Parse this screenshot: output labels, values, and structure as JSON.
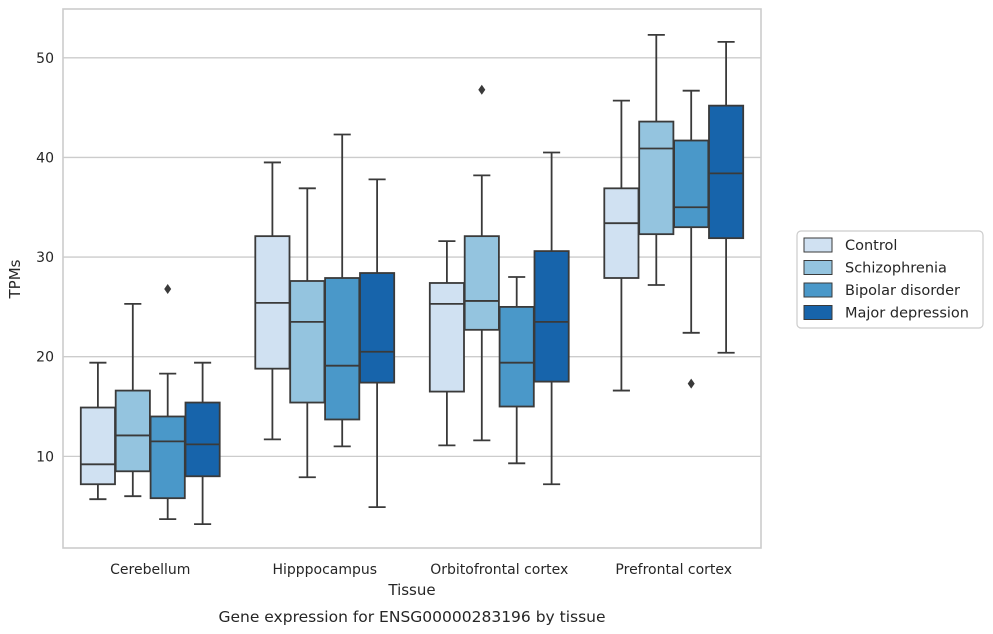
{
  "caption": "Gene expression for ENSG00000283196 by tissue",
  "chart_data": {
    "type": "box",
    "xlabel": "Tissue",
    "ylabel": "TPMs",
    "ylim": [
      0.8,
      54.9
    ],
    "yticks": [
      10,
      20,
      30,
      40,
      50
    ],
    "grid": "horizontal",
    "legend_position": "right",
    "categories": [
      "Cerebellum",
      "Hipppocampus",
      "Orbitofrontal cortex",
      "Prefrontal cortex"
    ],
    "series": [
      {
        "name": "Control",
        "color": "#d0e1f2",
        "boxes": [
          {
            "whislo": 5.7,
            "q1": 7.2,
            "med": 9.2,
            "q3": 14.9,
            "whishi": 19.4,
            "fliers": []
          },
          {
            "whislo": 11.7,
            "q1": 18.8,
            "med": 25.4,
            "q3": 32.1,
            "whishi": 39.5,
            "fliers": []
          },
          {
            "whislo": 11.1,
            "q1": 16.5,
            "med": 25.3,
            "q3": 27.4,
            "whishi": 31.6,
            "fliers": []
          },
          {
            "whislo": 16.6,
            "q1": 27.9,
            "med": 33.4,
            "q3": 36.9,
            "whishi": 45.7,
            "fliers": []
          }
        ]
      },
      {
        "name": "Schizophrenia",
        "color": "#94c4df",
        "boxes": [
          {
            "whislo": 6.0,
            "q1": 8.5,
            "med": 12.1,
            "q3": 16.6,
            "whishi": 25.3,
            "fliers": []
          },
          {
            "whislo": 7.9,
            "q1": 15.4,
            "med": 23.5,
            "q3": 27.6,
            "whishi": 36.9,
            "fliers": []
          },
          {
            "whislo": 11.6,
            "q1": 22.7,
            "med": 25.6,
            "q3": 32.1,
            "whishi": 38.2,
            "fliers": [
              46.8
            ]
          },
          {
            "whislo": 27.2,
            "q1": 32.3,
            "med": 40.9,
            "q3": 43.6,
            "whishi": 52.3,
            "fliers": []
          }
        ]
      },
      {
        "name": "Bipolar disorder",
        "color": "#4a98c9",
        "boxes": [
          {
            "whislo": 3.7,
            "q1": 5.8,
            "med": 11.5,
            "q3": 14.0,
            "whishi": 18.3,
            "fliers": [
              26.8
            ]
          },
          {
            "whislo": 11.0,
            "q1": 13.7,
            "med": 19.1,
            "q3": 27.9,
            "whishi": 42.3,
            "fliers": []
          },
          {
            "whislo": 9.3,
            "q1": 15.0,
            "med": 19.4,
            "q3": 25.0,
            "whishi": 28.0,
            "fliers": []
          },
          {
            "whislo": 22.4,
            "q1": 33.0,
            "med": 35.0,
            "q3": 41.7,
            "whishi": 46.7,
            "fliers": [
              17.3
            ]
          }
        ]
      },
      {
        "name": "Major depression",
        "color": "#1764ab",
        "boxes": [
          {
            "whislo": 3.2,
            "q1": 8.0,
            "med": 11.2,
            "q3": 15.4,
            "whishi": 19.4,
            "fliers": []
          },
          {
            "whislo": 4.9,
            "q1": 17.4,
            "med": 20.5,
            "q3": 28.4,
            "whishi": 37.8,
            "fliers": []
          },
          {
            "whislo": 7.2,
            "q1": 17.5,
            "med": 23.5,
            "q3": 30.6,
            "whishi": 40.5,
            "fliers": []
          },
          {
            "whislo": 20.4,
            "q1": 31.9,
            "med": 38.4,
            "q3": 45.2,
            "whishi": 51.6,
            "fliers": []
          }
        ]
      }
    ]
  }
}
